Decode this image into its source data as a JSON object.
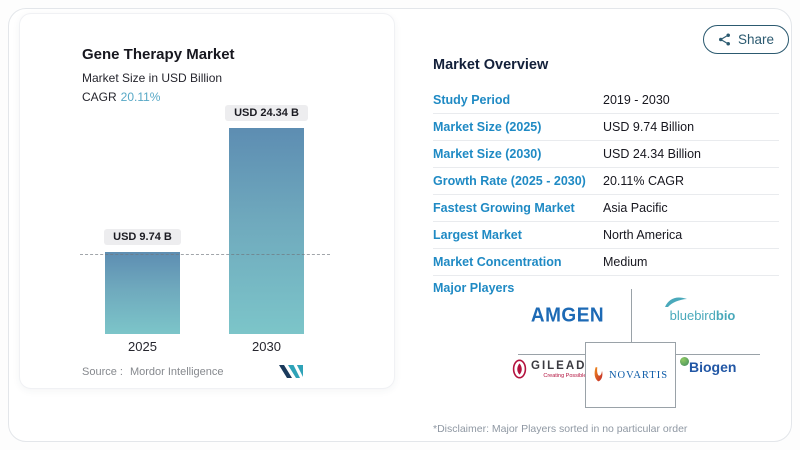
{
  "share": {
    "label": "Share"
  },
  "chart": {
    "title": "Gene Therapy Market",
    "subtitle": "Market Size in USD Billion",
    "cagr_label": "CAGR",
    "cagr_value": "20.11%",
    "source_label": "Source :",
    "source_value": "Mordor Intelligence",
    "bars": [
      {
        "year": "2025",
        "label": "USD 9.74 B"
      },
      {
        "year": "2030",
        "label": "USD 24.34 B"
      }
    ]
  },
  "chart_data": {
    "type": "bar",
    "title": "Gene Therapy Market",
    "subtitle": "Market Size in USD Billion",
    "categories": [
      "2025",
      "2030"
    ],
    "values": [
      9.74,
      24.34
    ],
    "data_labels": [
      "USD 9.74 B",
      "USD 24.34 B"
    ],
    "ylabel": "USD Billion",
    "ylim": [
      0,
      26
    ],
    "grid": false,
    "legend_position": "none",
    "reference_line": 9.74,
    "cagr": "20.11%",
    "bar_gradient": [
      "#5d8db2",
      "#7cc5c9"
    ]
  },
  "overview": {
    "heading": "Market Overview",
    "rows": [
      {
        "label": "Study Period",
        "value": "2019 - 2030"
      },
      {
        "label": "Market Size (2025)",
        "value": "USD 9.74 Billion"
      },
      {
        "label": "Market Size (2030)",
        "value": "USD 24.34 Billion"
      },
      {
        "label": "Growth Rate (2025 - 2030)",
        "value": "20.11% CAGR"
      },
      {
        "label": "Fastest Growing Market",
        "value": "Asia Pacific"
      },
      {
        "label": "Largest Market",
        "value": "North America"
      },
      {
        "label": "Market Concentration",
        "value": "Medium"
      }
    ],
    "major_players_label": "Major Players",
    "disclaimer": "*Disclaimer: Major Players sorted in no particular order"
  },
  "logos": {
    "amgen": "AMGEN",
    "bluebird_prefix": "bluebird",
    "bluebird_suffix": "bio",
    "gilead": "GILEAD",
    "gilead_tagline": "Creating Possible",
    "novartis": "NOVARTIS",
    "biogen": "Biogen"
  },
  "colors": {
    "accent_blue": "#1f8ac4",
    "cagr_teal": "#57a8c6",
    "bar_top": "#5d8db2",
    "bar_bottom": "#7cc5c9",
    "share_teal": "#2c5a70",
    "heading_navy": "#13203a"
  }
}
